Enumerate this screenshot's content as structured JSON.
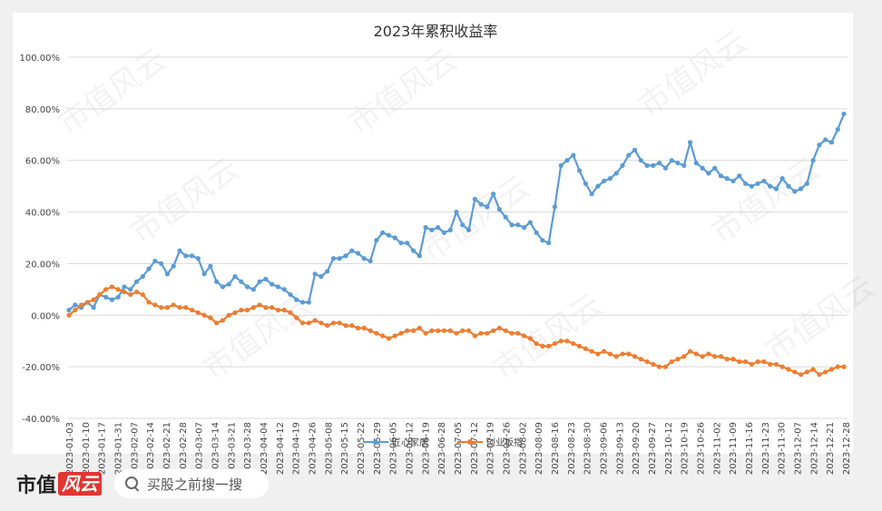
{
  "chart_data": {
    "type": "line",
    "title": "2023年累积收益率",
    "ylim": [
      -40,
      100
    ],
    "yticks": [
      -40,
      -20,
      0,
      20,
      40,
      60,
      80,
      100
    ],
    "ytick_labels": [
      "-40.00%",
      "-20.00%",
      "0.00%",
      "20.00%",
      "40.00%",
      "60.00%",
      "80.00%",
      "100.00%"
    ],
    "x_tick_labels": [
      "2023-01-03",
      "2023-01-10",
      "2023-01-17",
      "2023-01-31",
      "2023-02-07",
      "2023-02-14",
      "2023-02-21",
      "2023-02-28",
      "2023-03-07",
      "2023-03-14",
      "2023-03-21",
      "2023-03-28",
      "2023-04-04",
      "2023-04-12",
      "2023-04-19",
      "2023-04-26",
      "2023-05-08",
      "2023-05-15",
      "2023-05-22",
      "2023-05-29",
      "2023-06-05",
      "2023-06-12",
      "2023-06-19",
      "2023-06-28",
      "2023-07-05",
      "2023-07-12",
      "2023-07-19",
      "2023-07-26",
      "2023-08-02",
      "2023-08-09",
      "2023-08-16",
      "2023-08-23",
      "2023-08-30",
      "2023-09-06",
      "2023-09-13",
      "2023-09-20",
      "2023-09-27",
      "2023-10-12",
      "2023-10-19",
      "2023-10-26",
      "2023-11-02",
      "2023-11-09",
      "2023-11-16",
      "2023-11-23",
      "2023-11-30",
      "2023-12-07",
      "2023-12-14",
      "2023-12-21",
      "2023-12-28"
    ],
    "grid": true,
    "legend_position": "bottom",
    "series": [
      {
        "name": "匠心家居",
        "color": "#5b9bd5",
        "values": [
          2,
          4,
          3,
          5,
          3,
          8,
          7,
          6,
          7,
          11,
          10,
          13,
          15,
          18,
          21,
          20,
          16,
          19,
          25,
          23,
          23,
          22,
          16,
          19,
          13,
          11,
          12,
          15,
          13,
          11,
          10,
          13,
          14,
          12,
          11,
          10,
          8,
          6,
          5,
          5,
          16,
          15,
          17,
          22,
          22,
          23,
          25,
          24,
          22,
          21,
          29,
          32,
          31,
          30,
          28,
          28,
          25,
          23,
          34,
          33,
          34,
          32,
          33,
          40,
          35,
          33,
          45,
          43,
          42,
          47,
          41,
          38,
          35,
          35,
          34,
          36,
          32,
          29,
          28,
          42,
          58,
          60,
          62,
          56,
          51,
          47,
          50,
          52,
          53,
          55,
          58,
          62,
          64,
          60,
          58,
          58,
          59,
          57,
          60,
          59,
          58,
          67,
          59,
          57,
          55,
          57,
          54,
          53,
          52,
          54,
          51,
          50,
          51,
          52,
          50,
          49,
          53,
          50,
          48,
          49,
          51,
          60,
          66,
          68,
          67,
          72,
          78
        ]
      },
      {
        "name": "创业板指",
        "color": "#ed7d31",
        "values": [
          0,
          2,
          4,
          5,
          6,
          8,
          10,
          11,
          10,
          9,
          8,
          9,
          8,
          5,
          4,
          3,
          3,
          4,
          3,
          3,
          2,
          1,
          0,
          -1,
          -3,
          -2,
          0,
          1,
          2,
          2,
          3,
          4,
          3,
          3,
          2,
          2,
          1,
          -1,
          -3,
          -3,
          -2,
          -3,
          -4,
          -3,
          -3,
          -4,
          -4,
          -5,
          -5,
          -6,
          -7,
          -8,
          -9,
          -8,
          -7,
          -6,
          -6,
          -5,
          -7,
          -6,
          -6,
          -6,
          -6,
          -7,
          -6,
          -6,
          -8,
          -7,
          -7,
          -6,
          -5,
          -6,
          -7,
          -7,
          -8,
          -9,
          -11,
          -12,
          -12,
          -11,
          -10,
          -10,
          -11,
          -12,
          -13,
          -14,
          -15,
          -14,
          -15,
          -16,
          -15,
          -15,
          -16,
          -17,
          -18,
          -19,
          -20,
          -20,
          -18,
          -17,
          -16,
          -14,
          -15,
          -16,
          -15,
          -16,
          -16,
          -17,
          -17,
          -18,
          -18,
          -19,
          -18,
          -18,
          -19,
          -19,
          -20,
          -21,
          -22,
          -23,
          -22,
          -21,
          -23,
          -22,
          -21,
          -20,
          -20
        ]
      }
    ]
  },
  "watermark_text": "市值风云",
  "footer": {
    "brand_prefix": "市值",
    "brand_mark": "风云",
    "search_icon": "search-icon",
    "search_placeholder": "买股之前搜一搜"
  }
}
